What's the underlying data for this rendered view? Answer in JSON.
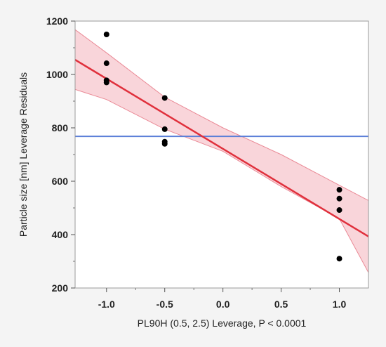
{
  "chart_data": {
    "type": "scatter",
    "xlabel": "PL90H (0.5, 2.5) Leverage, P < 0.0001",
    "ylabel": "Particle size [nm] Leverage Residuals",
    "xlim": [
      -1.27,
      1.25
    ],
    "ylim": [
      200,
      1200
    ],
    "x_ticks": [
      -1.0,
      -0.5,
      0.0,
      0.5,
      1.0
    ],
    "x_tick_labels": [
      "-1.0",
      "-0.5",
      "0.0",
      "0.5",
      "1.0"
    ],
    "y_ticks": [
      200,
      400,
      600,
      800,
      1000,
      1200
    ],
    "y_tick_labels": [
      "200",
      "400",
      "600",
      "800",
      "1000",
      "1200"
    ],
    "grid": false,
    "points": [
      {
        "x": -1.0,
        "y": 1150
      },
      {
        "x": -1.0,
        "y": 1042
      },
      {
        "x": -1.0,
        "y": 978
      },
      {
        "x": -1.0,
        "y": 970
      },
      {
        "x": -0.5,
        "y": 912
      },
      {
        "x": -0.5,
        "y": 795
      },
      {
        "x": -0.5,
        "y": 748
      },
      {
        "x": -0.5,
        "y": 740
      },
      {
        "x": 1.0,
        "y": 568
      },
      {
        "x": 1.0,
        "y": 535
      },
      {
        "x": 1.0,
        "y": 492
      },
      {
        "x": 1.0,
        "y": 310
      }
    ],
    "fit_line": {
      "x": [
        -1.27,
        1.25
      ],
      "y": [
        1055,
        393
      ]
    },
    "confidence_band": {
      "x": [
        -1.27,
        -1.0,
        -0.5,
        0.0,
        0.5,
        1.0,
        1.25
      ],
      "upper": [
        1168,
        1081,
        915,
        800,
        700,
        585,
        528
      ],
      "lower": [
        944,
        906,
        795,
        712,
        580,
        460,
        258
      ]
    },
    "mean_line": {
      "y": 768
    },
    "colors": {
      "points": "#000000",
      "fit_line": "#e0303c",
      "band_fill": "#f7c7cd",
      "band_edge": "#ea8a96",
      "mean_line": "#5b7fd8",
      "background": "#f4f4f4",
      "plot_background": "#ffffff"
    }
  }
}
